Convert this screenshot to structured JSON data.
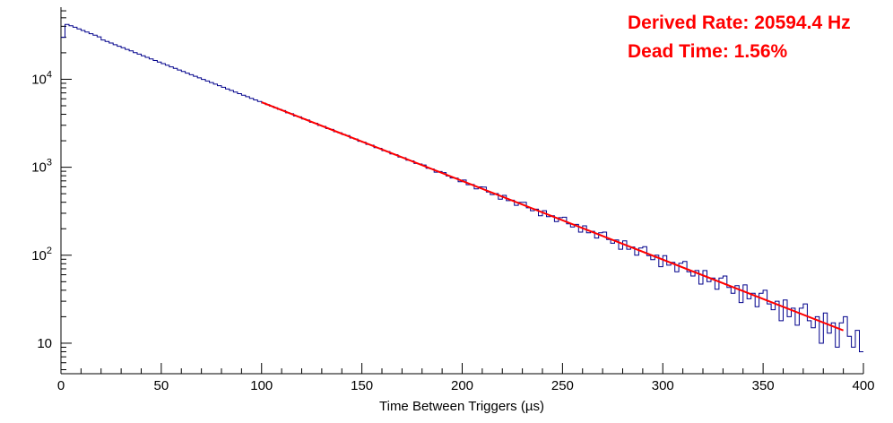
{
  "annotations": {
    "derived_rate": "Derived Rate: 20594.4 Hz",
    "dead_time": "Dead Time: 1.56%"
  },
  "colors": {
    "histogram": "#00008b",
    "fit": "#ff0000",
    "annotation": "#ff0000",
    "axis": "#000000",
    "background": "#ffffff"
  },
  "chart_data": {
    "type": "histogram",
    "title": "",
    "xlabel": "Time Between Triggers (µs)",
    "ylabel": "",
    "y_scale": "log",
    "xlim": [
      0,
      400
    ],
    "ylim": [
      4.5,
      66000
    ],
    "x_ticks": [
      0,
      50,
      100,
      150,
      200,
      250,
      300,
      350,
      400
    ],
    "x_minor_step": 10,
    "y_major_ticks": [
      10,
      100,
      1000,
      10000
    ],
    "x_start": 0,
    "bin_width": 2,
    "counts": [
      30000,
      42000,
      40600,
      39000,
      37400,
      35900,
      34400,
      33000,
      31700,
      30400,
      28000,
      26900,
      25800,
      24700,
      23750,
      22800,
      21850,
      21000,
      20100,
      19300,
      18500,
      17750,
      17050,
      16350,
      15700,
      15050,
      14450,
      13850,
      13300,
      12750,
      12250,
      11750,
      11270,
      10820,
      10380,
      9960,
      9560,
      9170,
      8800,
      8450,
      8100,
      7780,
      7460,
      7160,
      6870,
      6590,
      6330,
      6070,
      5830,
      5590,
      5370,
      5150,
      4940,
      4740,
      4550,
      4410,
      4150,
      4060,
      3820,
      3735,
      3530,
      3445,
      3240,
      3165,
      2985,
      2915,
      2750,
      2690,
      2530,
      2470,
      2355,
      2290,
      2150,
      2095,
      1975,
      1930,
      1820,
      1780,
      1672,
      1640,
      1545,
      1510,
      1420,
      1388,
      1305,
      1283,
      1200,
      1182,
      1105,
      1088,
      1060,
      975,
      958,
      880,
      895,
      870,
      795,
      755,
      752,
      685,
      715,
      633,
      636,
      567,
      599,
      595,
      524,
      489,
      502,
      433,
      479,
      417,
      422,
      369,
      400,
      400,
      346,
      321,
      334,
      281,
      321,
      274,
      281,
      241,
      267,
      270,
      228,
      210,
      224,
      183,
      216,
      180,
      187,
      157,
      180,
      183,
      151,
      137,
      149,
      117,
      146,
      117,
      124,
      100,
      121,
      125,
      99,
      89,
      100,
      74,
      99,
      77,
      83,
      65,
      81,
      85,
      65,
      58,
      67,
      47,
      67,
      50,
      55,
      41,
      55,
      58,
      43,
      37,
      45,
      29,
      46,
      32,
      37,
      26,
      37,
      40,
      28,
      24,
      30,
      18,
      31,
      20,
      25,
      16,
      25,
      28,
      18,
      15,
      20,
      10,
      22,
      13,
      17,
      9,
      17,
      20,
      12,
      9,
      14,
      8
    ],
    "fit": {
      "type": "exponential",
      "amplitude": 43000,
      "decay_rate_per_us": 0.0205944,
      "x_min": 100,
      "x_max": 390,
      "color": "#ff0000"
    },
    "derived_rate_hz": 20594.4,
    "dead_time_percent": 1.56
  }
}
